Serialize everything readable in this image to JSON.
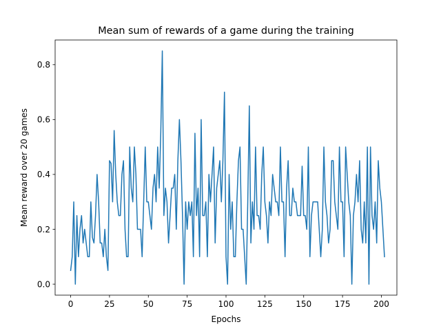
{
  "chart_data": {
    "type": "line",
    "title": "Mean sum of rewards of a game during the training",
    "xlabel": "Epochs",
    "ylabel": "Mean reward over 20 games",
    "xlim": [
      -10,
      210
    ],
    "ylim": [
      -0.04,
      0.89
    ],
    "x_ticks": [
      0,
      25,
      50,
      75,
      100,
      125,
      150,
      175,
      200
    ],
    "x_tick_labels": [
      "0",
      "25",
      "50",
      "75",
      "100",
      "125",
      "150",
      "175",
      "200"
    ],
    "y_ticks": [
      0.0,
      0.2,
      0.4,
      0.6,
      0.8
    ],
    "y_tick_labels": [
      "0.0",
      "0.2",
      "0.4",
      "0.6",
      "0.8"
    ],
    "grid": false,
    "series": [
      {
        "color": "#1f77b4",
        "x_start": 0,
        "x_step": 1,
        "values": [
          0.05,
          0.1,
          0.3,
          0.0,
          0.25,
          0.1,
          0.2,
          0.25,
          0.15,
          0.2,
          0.15,
          0.1,
          0.1,
          0.3,
          0.17,
          0.15,
          0.25,
          0.4,
          0.3,
          0.15,
          0.15,
          0.1,
          0.2,
          0.1,
          0.05,
          0.45,
          0.44,
          0.3,
          0.56,
          0.4,
          0.3,
          0.25,
          0.25,
          0.4,
          0.45,
          0.2,
          0.1,
          0.1,
          0.5,
          0.35,
          0.3,
          0.5,
          0.4,
          0.2,
          0.2,
          0.2,
          0.1,
          0.3,
          0.5,
          0.3,
          0.3,
          0.25,
          0.2,
          0.35,
          0.4,
          0.3,
          0.5,
          0.35,
          0.55,
          0.85,
          0.25,
          0.35,
          0.3,
          0.15,
          0.25,
          0.35,
          0.35,
          0.4,
          0.2,
          0.45,
          0.6,
          0.45,
          0.25,
          0.0,
          0.3,
          0.2,
          0.3,
          0.25,
          0.3,
          0.1,
          0.55,
          0.25,
          0.35,
          0.1,
          0.6,
          0.25,
          0.25,
          0.3,
          0.1,
          0.4,
          0.3,
          0.4,
          0.5,
          0.15,
          0.35,
          0.4,
          0.45,
          0.3,
          0.45,
          0.7,
          0.1,
          0.0,
          0.4,
          0.2,
          0.3,
          0.1,
          0.1,
          0.3,
          0.45,
          0.5,
          0.2,
          0.2,
          0.1,
          0.0,
          0.3,
          0.65,
          0.15,
          0.3,
          0.2,
          0.5,
          0.25,
          0.25,
          0.2,
          0.4,
          0.5,
          0.3,
          0.25,
          0.15,
          0.3,
          0.25,
          0.4,
          0.35,
          0.3,
          0.3,
          0.25,
          0.5,
          0.3,
          0.3,
          0.1,
          0.35,
          0.45,
          0.25,
          0.25,
          0.35,
          0.3,
          0.3,
          0.25,
          0.25,
          0.25,
          0.43,
          0.25,
          0.25,
          0.2,
          0.5,
          0.1,
          0.25,
          0.3,
          0.3,
          0.3,
          0.3,
          0.2,
          0.1,
          0.2,
          0.5,
          0.3,
          0.25,
          0.15,
          0.2,
          0.45,
          0.45,
          0.3,
          0.25,
          0.2,
          0.5,
          0.3,
          0.3,
          0.1,
          0.5,
          0.4,
          0.3,
          0.25,
          0.0,
          0.25,
          0.3,
          0.4,
          0.3,
          0.45,
          0.2,
          0.15,
          0.3,
          0.15,
          0.5,
          0.0,
          0.5,
          0.25,
          0.2,
          0.3,
          0.15,
          0.45,
          0.35,
          0.3,
          0.2,
          0.1
        ]
      }
    ]
  }
}
